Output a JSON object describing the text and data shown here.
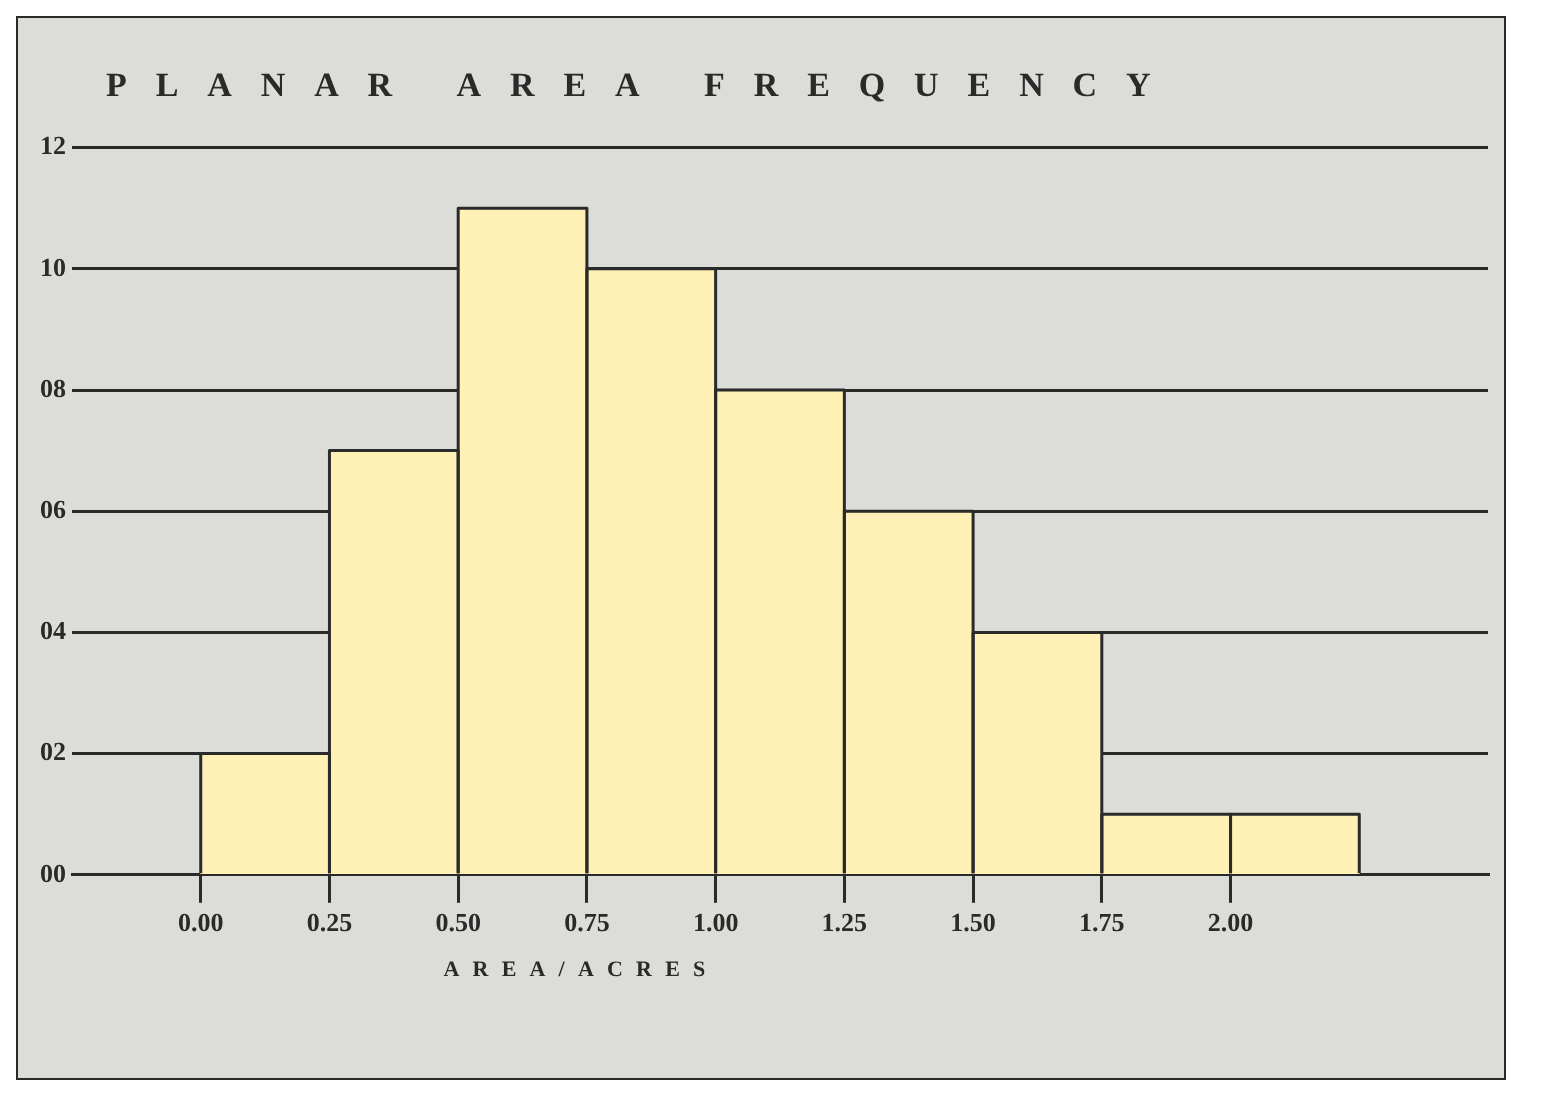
{
  "chart_data": {
    "type": "histogram",
    "title": "PLANAR AREA FREQUENCY",
    "xlabel": "AREA/ACRES",
    "bins": [
      0,
      0.25,
      0.5,
      0.75,
      1.0,
      1.25,
      1.5,
      1.75,
      2.0,
      2.25
    ],
    "values": [
      2,
      7,
      11,
      10,
      8,
      6,
      4,
      1,
      1
    ],
    "color": "#fff0b5",
    "xlim": [
      -0.25,
      2.5
    ],
    "xticks": [
      {
        "value": 0,
        "label": "0.00"
      },
      {
        "value": 0.25,
        "label": "0.25"
      },
      {
        "value": 0.5,
        "label": "0.50"
      },
      {
        "value": 0.75,
        "label": "0.75"
      },
      {
        "value": 1,
        "label": "1.00"
      },
      {
        "value": 1.25,
        "label": "1.25"
      },
      {
        "value": 1.5,
        "label": "1.50"
      },
      {
        "value": 1.75,
        "label": "1.75"
      },
      {
        "value": 2,
        "label": "2.00"
      }
    ],
    "ylim": [
      0,
      12
    ],
    "yticks": [
      {
        "value": 0,
        "label": "00"
      },
      {
        "value": 2,
        "label": "02"
      },
      {
        "value": 4,
        "label": "04"
      },
      {
        "value": 6,
        "label": "06"
      },
      {
        "value": 8,
        "label": "08"
      },
      {
        "value": 10,
        "label": "10"
      },
      {
        "value": 12,
        "label": "12"
      }
    ],
    "grid": "y"
  }
}
